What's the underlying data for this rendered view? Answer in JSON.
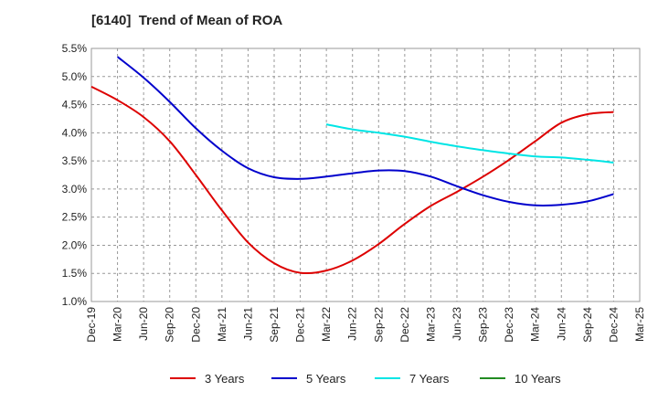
{
  "chart_data": {
    "type": "line",
    "title": "[6140]  Trend of Mean of ROA",
    "xlabel": "",
    "ylabel": "",
    "categories": [
      "Dec-19",
      "Mar-20",
      "Jun-20",
      "Sep-20",
      "Dec-20",
      "Mar-21",
      "Jun-21",
      "Sep-21",
      "Dec-21",
      "Mar-22",
      "Jun-22",
      "Sep-22",
      "Dec-22",
      "Mar-23",
      "Jun-23",
      "Sep-23",
      "Dec-23",
      "Mar-24",
      "Jun-24",
      "Sep-24",
      "Dec-24",
      "Mar-25"
    ],
    "y_ticks": [
      "1.0%",
      "1.5%",
      "2.0%",
      "2.5%",
      "3.0%",
      "3.5%",
      "4.0%",
      "4.5%",
      "5.0%",
      "5.5%"
    ],
    "ylim": [
      1.0,
      5.5
    ],
    "grid": true,
    "legend_position": "bottom",
    "series": [
      {
        "name": "3 Years",
        "color": "#dd0000",
        "values": [
          4.82,
          4.58,
          4.28,
          3.85,
          3.25,
          2.62,
          2.05,
          1.68,
          1.51,
          1.55,
          1.73,
          2.02,
          2.38,
          2.7,
          2.95,
          3.22,
          3.52,
          3.85,
          4.18,
          4.33,
          4.37,
          null
        ]
      },
      {
        "name": "5 Years",
        "color": "#0000cc",
        "values": [
          null,
          5.35,
          4.98,
          4.55,
          4.08,
          3.68,
          3.37,
          3.21,
          3.18,
          3.22,
          3.28,
          3.33,
          3.32,
          3.22,
          3.05,
          2.89,
          2.77,
          2.71,
          2.72,
          2.78,
          2.91,
          null
        ]
      },
      {
        "name": "7 Years",
        "color": "#00e5e5",
        "values": [
          null,
          null,
          null,
          null,
          null,
          null,
          null,
          null,
          null,
          4.15,
          4.06,
          4.0,
          3.93,
          3.84,
          3.76,
          3.69,
          3.63,
          3.58,
          3.56,
          3.52,
          3.47,
          null
        ]
      },
      {
        "name": "10 Years",
        "color": "#228b22",
        "values": [
          null,
          null,
          null,
          null,
          null,
          null,
          null,
          null,
          null,
          null,
          null,
          null,
          null,
          null,
          null,
          null,
          null,
          null,
          null,
          null,
          null,
          null
        ]
      }
    ]
  }
}
